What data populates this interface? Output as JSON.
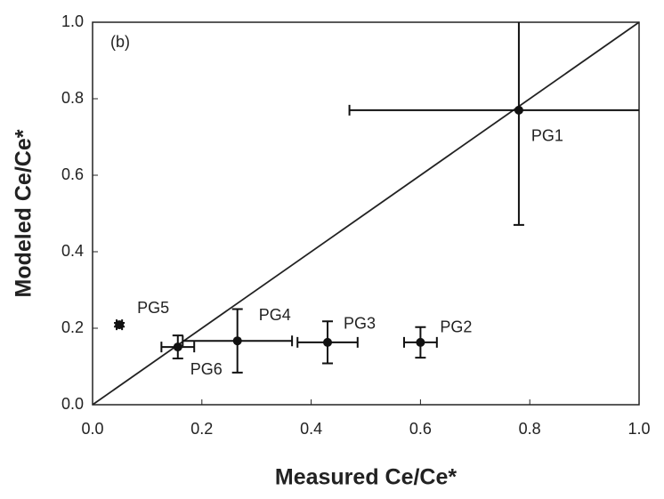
{
  "chart_data": {
    "type": "scatter",
    "x_label": "Measured Ce/Ce*",
    "y_label": "Modeled Ce/Ce*",
    "annotation": "(b)",
    "xlim": [
      0,
      1
    ],
    "ylim": [
      0,
      1
    ],
    "xticks": [
      {
        "value": 0,
        "label": "0.0"
      },
      0.2,
      0.4,
      0.6,
      0.8,
      {
        "value": 1,
        "label": "1.0"
      }
    ],
    "yticks": [
      {
        "value": 0,
        "label": "0.0"
      },
      0.2,
      0.4,
      0.6,
      0.8,
      {
        "value": 1,
        "label": "1.0"
      }
    ],
    "color": "#111111",
    "series": [
      {
        "names": [
          "PG1",
          "PG2",
          "PG3",
          "PG4",
          "PG5",
          "PG6"
        ],
        "x": [
          0.78,
          0.6,
          0.43,
          0.265,
          0.049,
          0.156
        ],
        "y": [
          0.77,
          0.163,
          0.163,
          0.167,
          0.209,
          0.151
        ],
        "xerr": [
          0.31,
          0.03,
          0.055,
          0.1,
          0.005,
          0.03
        ],
        "yerr": [
          0.3,
          0.04,
          0.055,
          0.083,
          0.005,
          0.03
        ]
      }
    ]
  }
}
